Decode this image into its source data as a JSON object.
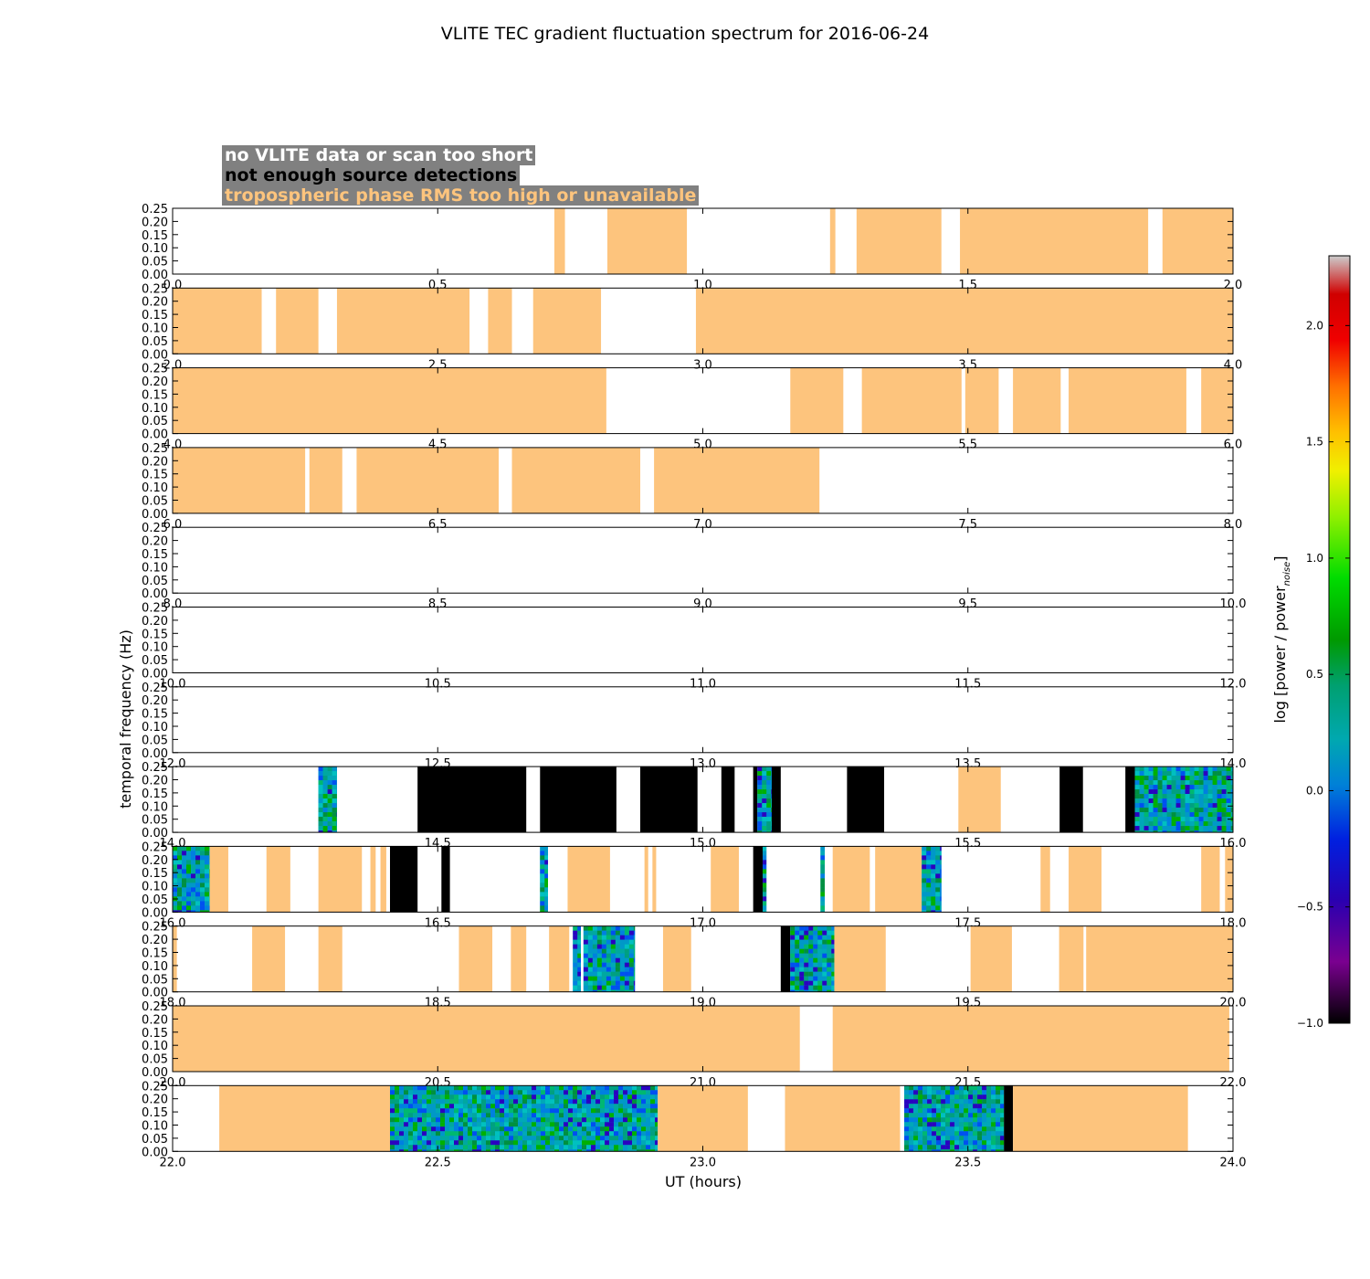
{
  "chart_data": {
    "type": "heatmap",
    "title": "VLITE TEC gradient fluctuation spectrum for 2016-06-24",
    "xlabel": "UT (hours)",
    "ylabel": "temporal frequency (Hz)",
    "ylim": [
      0,
      0.25
    ],
    "yticks": [
      "0.00",
      "0.05",
      "0.10",
      "0.15",
      "0.20",
      "0.25"
    ],
    "colorbar": {
      "label": "log [power / power",
      "label_sub": "noise",
      "label_end": "]",
      "range": [
        -1.0,
        2.3
      ],
      "ticks": [
        "−1.0",
        "−0.5",
        "0.0",
        "0.5",
        "1.0",
        "1.5",
        "2.0"
      ],
      "tick_values": [
        -1.0,
        -0.5,
        0.0,
        0.5,
        1.0,
        1.5,
        2.0
      ],
      "colormap": "spectral"
    },
    "legend": [
      {
        "label": "no VLITE data or scan too short",
        "text_color": "#ffffff",
        "bg_color": "#808080"
      },
      {
        "label": "not enough source detections",
        "text_color": "#000000",
        "bg_color": "#808080"
      },
      {
        "label": "tropospheric phase RMS too high or unavailable",
        "text_color": "#fdc47d",
        "bg_color": "#808080"
      }
    ],
    "colors": {
      "troposphere": "#fdc47d",
      "detections": "#000000",
      "no_data": "#ffffff"
    },
    "panels": [
      {
        "xlim": [
          0,
          2
        ],
        "xticks": [
          "0.0",
          "0.5",
          "1.0",
          "1.5",
          "2.0"
        ],
        "segments": [
          [
            "t",
            0.72,
            0.74
          ],
          [
            "t",
            0.82,
            0.97
          ],
          [
            "t",
            1.24,
            1.25
          ],
          [
            "t",
            1.29,
            1.45
          ],
          [
            "t",
            1.485,
            1.84
          ],
          [
            "t",
            1.867,
            2.0
          ]
        ]
      },
      {
        "xlim": [
          2,
          4
        ],
        "xticks": [
          "2.0",
          "2.5",
          "3.0",
          "3.5",
          "4.0"
        ],
        "segments": [
          [
            "t",
            2.0,
            2.168
          ],
          [
            "t",
            2.195,
            2.275
          ],
          [
            "t",
            2.31,
            2.56
          ],
          [
            "t",
            2.595,
            2.64
          ],
          [
            "t",
            2.68,
            2.808
          ],
          [
            "t",
            2.987,
            4.0
          ]
        ]
      },
      {
        "xlim": [
          4,
          6
        ],
        "xticks": [
          "4.0",
          "4.5",
          "5.0",
          "5.5",
          "6.0"
        ],
        "segments": [
          [
            "t",
            4.0,
            4.818
          ],
          [
            "t",
            5.165,
            5.265
          ],
          [
            "t",
            5.3,
            5.488
          ],
          [
            "t",
            5.495,
            5.558
          ],
          [
            "t",
            5.585,
            5.675
          ],
          [
            "t",
            5.69,
            5.912
          ],
          [
            "t",
            5.94,
            6.0
          ]
        ]
      },
      {
        "xlim": [
          6,
          8
        ],
        "xticks": [
          "6.0",
          "6.5",
          "7.0",
          "7.5",
          "8.0"
        ],
        "segments": [
          [
            "t",
            6.0,
            6.25
          ],
          [
            "t",
            6.258,
            6.32
          ],
          [
            "t",
            6.347,
            6.615
          ],
          [
            "t",
            6.64,
            6.882
          ],
          [
            "t",
            6.908,
            7.22
          ]
        ]
      },
      {
        "xlim": [
          8,
          10
        ],
        "xticks": [
          "8.0",
          "8.5",
          "9.0",
          "9.5",
          "10.0"
        ],
        "segments": []
      },
      {
        "xlim": [
          10,
          12
        ],
        "xticks": [
          "10.0",
          "10.5",
          "11.0",
          "11.5",
          "12.0"
        ],
        "segments": []
      },
      {
        "xlim": [
          12,
          14
        ],
        "xticks": [
          "12.0",
          "12.5",
          "13.0",
          "13.5",
          "14.0"
        ],
        "segments": []
      },
      {
        "xlim": [
          14,
          16
        ],
        "xticks": [
          "14.0",
          "14.5",
          "15.0",
          "15.5",
          "16.0"
        ],
        "segments": [
          [
            "s",
            14.275,
            14.31
          ],
          [
            "b",
            14.462,
            14.667
          ],
          [
            "b",
            14.693,
            14.837
          ],
          [
            "b",
            14.882,
            14.99
          ],
          [
            "b",
            15.035,
            15.06
          ],
          [
            "b",
            15.095,
            15.103
          ],
          [
            "s",
            15.103,
            15.13
          ],
          [
            "b",
            15.13,
            15.147
          ],
          [
            "b",
            15.272,
            15.342
          ],
          [
            "t",
            15.482,
            15.562
          ],
          [
            "b",
            15.673,
            15.717
          ],
          [
            "b",
            15.797,
            15.815
          ],
          [
            "s",
            15.815,
            16.0
          ]
        ]
      },
      {
        "xlim": [
          16,
          18
        ],
        "xticks": [
          "16.0",
          "16.5",
          "17.0",
          "17.5",
          "18.0"
        ],
        "segments": [
          [
            "s",
            16.0,
            16.07
          ],
          [
            "t",
            16.07,
            16.105
          ],
          [
            "t",
            16.177,
            16.222
          ],
          [
            "t",
            16.275,
            16.357
          ],
          [
            "t",
            16.373,
            16.383
          ],
          [
            "t",
            16.392,
            16.403
          ],
          [
            "b",
            16.41,
            16.462
          ],
          [
            "b",
            16.507,
            16.523
          ],
          [
            "s",
            16.693,
            16.708
          ],
          [
            "t",
            16.745,
            16.825
          ],
          [
            "t",
            16.89,
            16.897
          ],
          [
            "t",
            16.905,
            16.912
          ],
          [
            "t",
            17.015,
            17.068
          ],
          [
            "b",
            17.095,
            17.113
          ],
          [
            "s",
            17.113,
            17.12
          ],
          [
            "s",
            17.222,
            17.23
          ],
          [
            "t",
            17.245,
            17.315
          ],
          [
            "t",
            17.325,
            17.413
          ],
          [
            "s",
            17.413,
            17.45
          ],
          [
            "t",
            17.637,
            17.655
          ],
          [
            "t",
            17.69,
            17.752
          ],
          [
            "t",
            17.94,
            17.975
          ],
          [
            "t",
            17.985,
            18.0
          ]
        ]
      },
      {
        "xlim": [
          18,
          20
        ],
        "xticks": [
          "18.0",
          "18.5",
          "19.0",
          "19.5",
          "20.0"
        ],
        "segments": [
          [
            "t",
            18.0,
            18.008
          ],
          [
            "t",
            18.15,
            18.212
          ],
          [
            "t",
            18.275,
            18.32
          ],
          [
            "t",
            18.54,
            18.603
          ],
          [
            "t",
            18.638,
            18.667
          ],
          [
            "t",
            18.71,
            18.748
          ],
          [
            "s",
            18.755,
            18.77
          ],
          [
            "s",
            18.775,
            18.872
          ],
          [
            "t",
            18.925,
            18.978
          ],
          [
            "b",
            19.147,
            19.165
          ],
          [
            "s",
            19.165,
            19.248
          ],
          [
            "t",
            19.248,
            19.345
          ],
          [
            "t",
            19.505,
            19.583
          ],
          [
            "t",
            19.672,
            19.718
          ],
          [
            "t",
            19.723,
            20.0
          ]
        ]
      },
      {
        "xlim": [
          20,
          22
        ],
        "xticks": [
          "20.0",
          "20.5",
          "21.0",
          "21.5",
          "22.0"
        ],
        "segments": [
          [
            "t",
            20.0,
            21.183
          ],
          [
            "t",
            21.245,
            21.993
          ]
        ]
      },
      {
        "xlim": [
          22,
          24
        ],
        "xticks": [
          "22.0",
          "22.5",
          "23.0",
          "23.5",
          "24.0"
        ],
        "segments": [
          [
            "t",
            22.088,
            22.41
          ],
          [
            "s",
            22.41,
            22.915
          ],
          [
            "t",
            22.915,
            23.085
          ],
          [
            "t",
            23.155,
            23.372
          ],
          [
            "s",
            23.38,
            23.568
          ],
          [
            "b",
            23.568,
            23.585
          ],
          [
            "t",
            23.585,
            23.915
          ]
        ]
      }
    ]
  }
}
